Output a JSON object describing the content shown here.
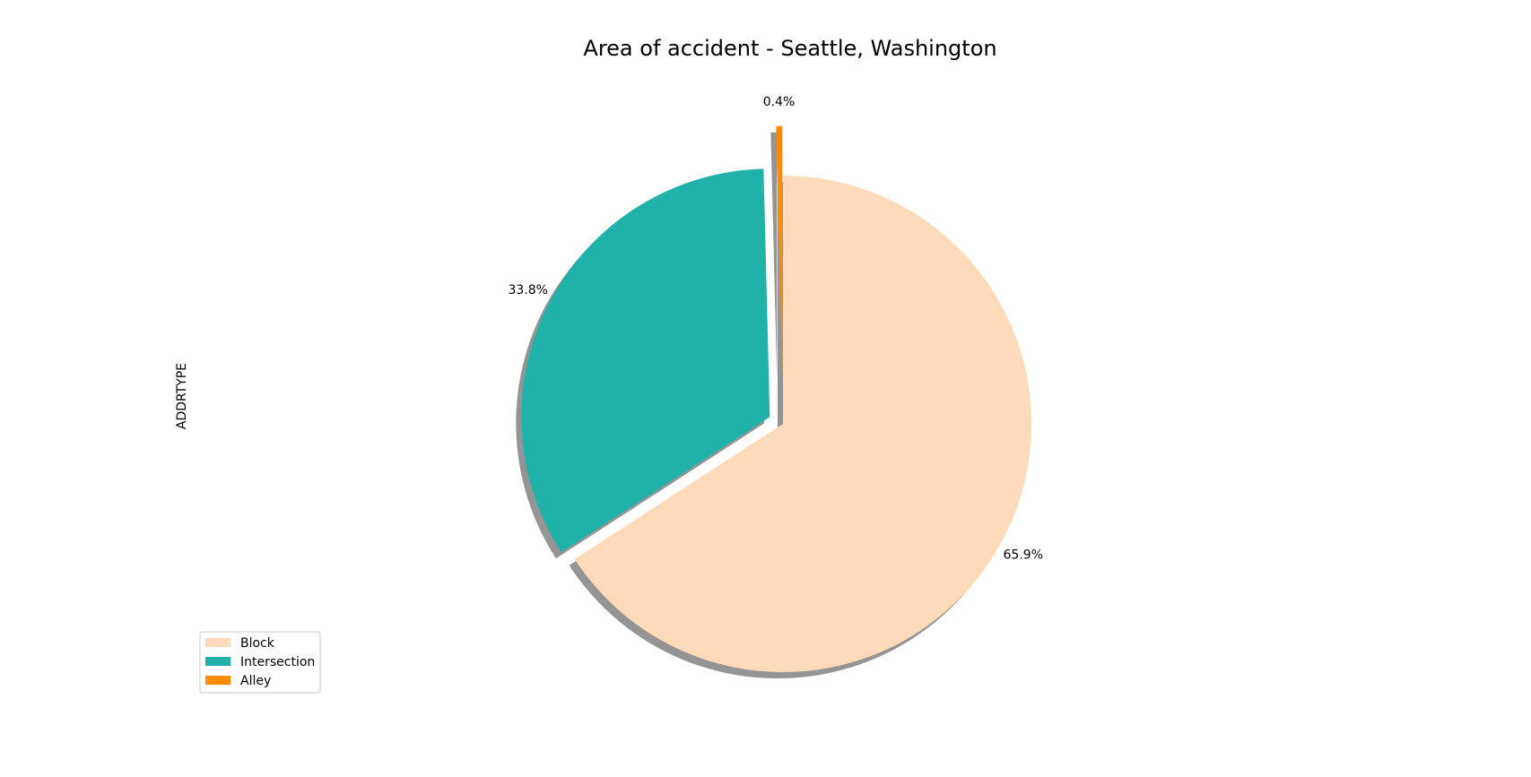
{
  "chart_data": {
    "type": "pie",
    "title": "Area of accident - Seattle, Washington",
    "ylabel": "ADDRTYPE",
    "slices": [
      {
        "label": "Block",
        "percent": 65.9,
        "label_text": "65.9%",
        "color": "#FFDAB9",
        "exploded": false
      },
      {
        "label": "Intersection",
        "percent": 33.8,
        "label_text": "33.8%",
        "color": "#20B2AA",
        "exploded": true
      },
      {
        "label": "Alley",
        "percent": 0.4,
        "label_text": "0.4%",
        "color": "#FF8C00",
        "exploded": true
      }
    ],
    "start_angle_deg": 90,
    "direction": "clockwise",
    "shadow": true,
    "legend": {
      "placement": "lower-left",
      "entries": [
        "Block",
        "Intersection",
        "Alley"
      ]
    }
  }
}
